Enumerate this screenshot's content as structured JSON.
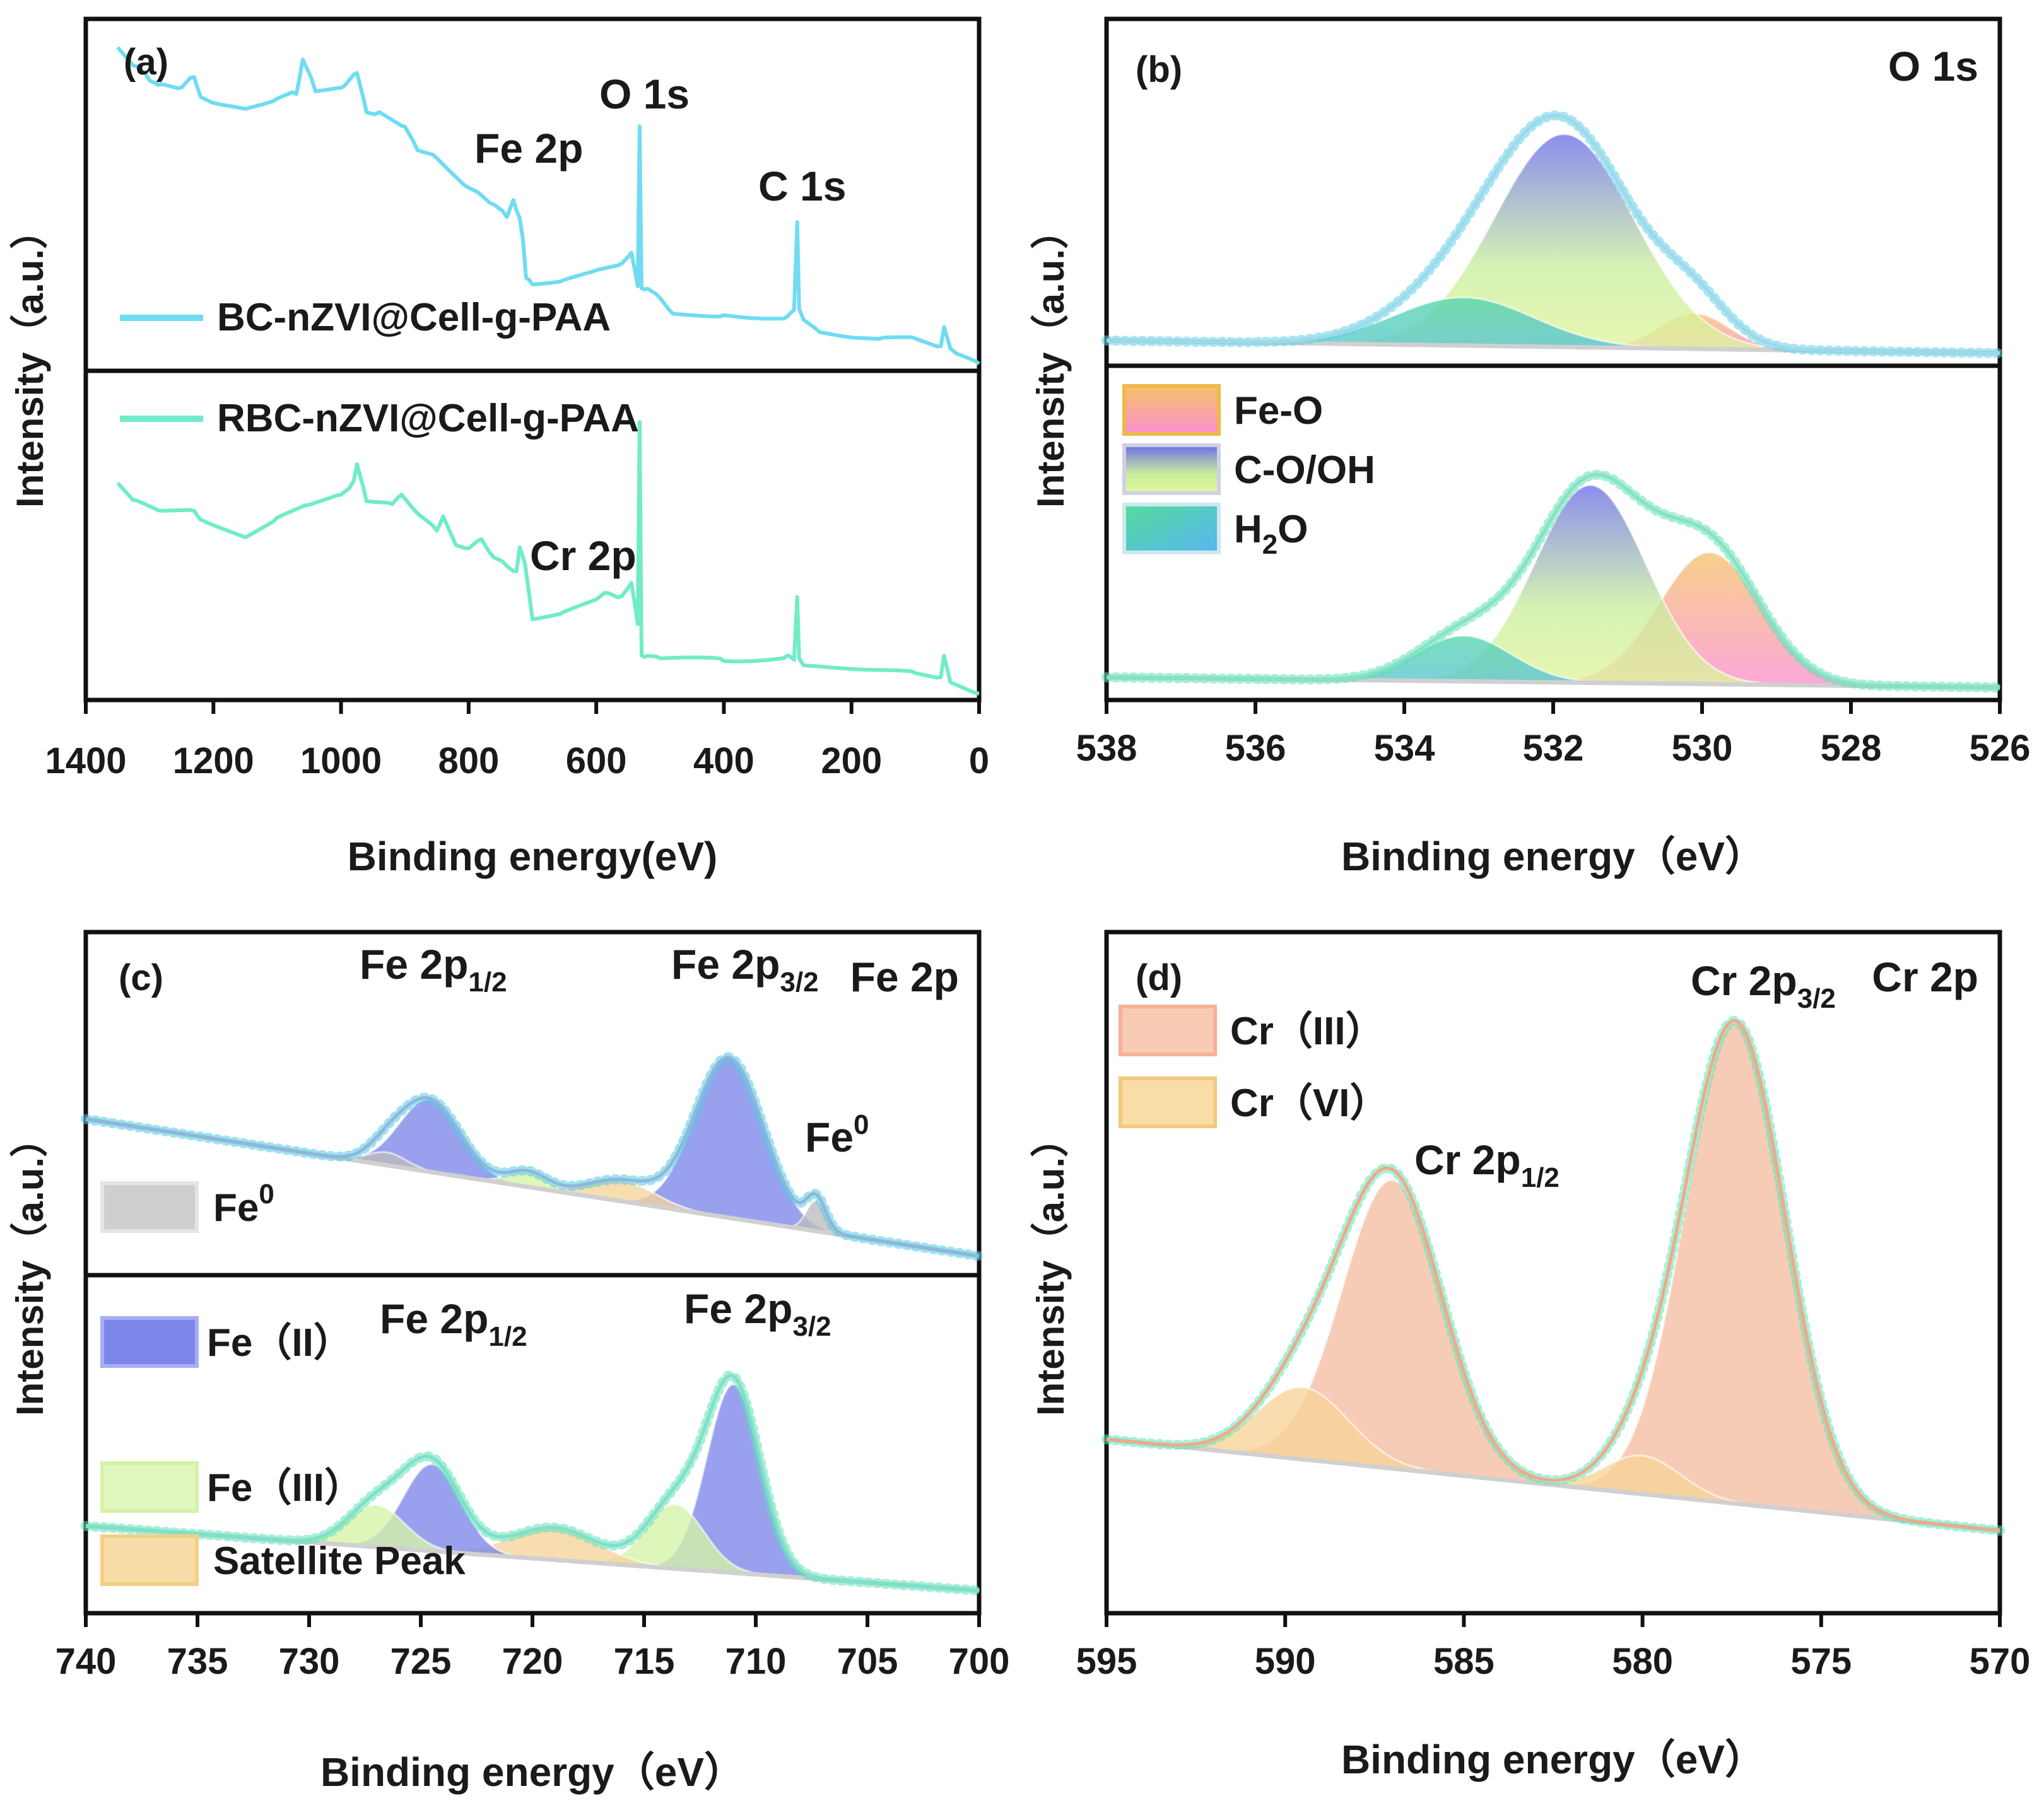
{
  "chart_data": [
    {
      "panel": "(a)",
      "type": "line",
      "xlabel": "Binding energy(eV)",
      "ylabel": "Intensity（a.u.）",
      "xlim": [
        1400,
        0
      ],
      "x_ticks": [
        "1400",
        "1200",
        "1000",
        "800",
        "600",
        "400",
        "200",
        "0"
      ],
      "stacks": [
        {
          "legend": "BC-nZVI@Cell-g-PAA",
          "color": "#6fdcf2",
          "x": [
            1350,
            1320,
            1300,
            1280,
            1250,
            1230,
            1220,
            1200,
            1150,
            1100,
            1070,
            1060,
            1040,
            1000,
            990,
            975,
            960,
            940,
            900,
            880,
            850,
            800,
            780,
            760,
            740,
            730,
            720,
            715,
            710,
            700,
            650,
            600,
            560,
            545,
            535,
            532,
            529,
            520,
            500,
            480,
            400,
            300,
            290,
            285,
            282,
            275,
            250,
            200,
            150,
            100,
            60,
            55,
            45,
            30,
            0
          ],
          "y": [
            0.92,
            0.86,
            0.83,
            0.81,
            0.8,
            0.84,
            0.78,
            0.76,
            0.75,
            0.77,
            0.79,
            0.88,
            0.8,
            0.81,
            0.82,
            0.85,
            0.74,
            0.73,
            0.69,
            0.63,
            0.61,
            0.52,
            0.5,
            0.47,
            0.44,
            0.49,
            0.43,
            0.38,
            0.26,
            0.25,
            0.26,
            0.28,
            0.3,
            0.33,
            0.24,
            0.7,
            0.24,
            0.23,
            0.21,
            0.16,
            0.16,
            0.15,
            0.17,
            0.42,
            0.17,
            0.14,
            0.11,
            0.1,
            0.09,
            0.09,
            0.07,
            0.12,
            0.06,
            0.04,
            0.02
          ],
          "annotations": [
            "Fe 2p",
            "O 1s",
            "C 1s"
          ]
        },
        {
          "legend": "RBC-nZVI@Cell-g-PAA",
          "color": "#70ecc8",
          "x": [
            1350,
            1320,
            1280,
            1230,
            1220,
            1200,
            1150,
            1100,
            1050,
            1000,
            980,
            975,
            960,
            920,
            905,
            880,
            850,
            840,
            820,
            800,
            780,
            760,
            740,
            725,
            720,
            712,
            705,
            700,
            650,
            600,
            580,
            560,
            545,
            535,
            532,
            529,
            520,
            500,
            400,
            300,
            290,
            285,
            282,
            275,
            200,
            100,
            60,
            55,
            45,
            0
          ],
          "y": [
            0.66,
            0.6,
            0.57,
            0.58,
            0.55,
            0.53,
            0.5,
            0.55,
            0.59,
            0.63,
            0.66,
            0.72,
            0.61,
            0.6,
            0.63,
            0.57,
            0.52,
            0.56,
            0.47,
            0.46,
            0.49,
            0.43,
            0.41,
            0.39,
            0.46,
            0.42,
            0.32,
            0.25,
            0.27,
            0.3,
            0.33,
            0.31,
            0.35,
            0.23,
            0.85,
            0.14,
            0.13,
            0.13,
            0.12,
            0.13,
            0.12,
            0.31,
            0.12,
            0.1,
            0.1,
            0.08,
            0.07,
            0.13,
            0.05,
            0.02
          ],
          "annotations": [
            "Cr 2p"
          ]
        }
      ]
    },
    {
      "panel": "(b)",
      "type": "area",
      "title": "O 1s",
      "xlabel": "Binding energy（eV）",
      "ylabel": "Intensity（a.u.）",
      "xlim": [
        538,
        526
      ],
      "x_ticks": [
        "538",
        "536",
        "534",
        "532",
        "530",
        "528",
        "526"
      ],
      "legend": [
        {
          "name": "Fe-O",
          "colors": [
            "#f5c26a",
            "#fb8fcf"
          ]
        },
        {
          "name": "C-O/OH",
          "colors": [
            "#6b6ee8",
            "#d6f39a"
          ]
        },
        {
          "name": "H2O",
          "colors": [
            "#52dc9a",
            "#5ab6f2"
          ]
        }
      ],
      "top_components": [
        {
          "name": "Fe-O",
          "center": 530.1,
          "fwhm": 1.1,
          "height": 0.14
        },
        {
          "name": "C-O/OH",
          "center": 531.85,
          "fwhm": 2.2,
          "height": 0.84
        },
        {
          "name": "H2O",
          "center": 533.2,
          "fwhm": 2.2,
          "height": 0.19
        }
      ],
      "bottom_components": [
        {
          "name": "Fe-O",
          "center": 529.9,
          "fwhm": 1.6,
          "height": 0.52
        },
        {
          "name": "C-O/OH",
          "center": 531.5,
          "fwhm": 1.75,
          "height": 0.78
        },
        {
          "name": "H2O",
          "center": 533.2,
          "fwhm": 1.5,
          "height": 0.18
        }
      ]
    },
    {
      "panel": "(c)",
      "type": "area",
      "title": "Fe 2p",
      "xlabel": "Binding energy（eV）",
      "ylabel": "Intensity（a.u.）",
      "xlim": [
        740,
        700
      ],
      "x_ticks": [
        "740",
        "735",
        "730",
        "725",
        "720",
        "715",
        "710",
        "705",
        "700"
      ],
      "legend": [
        {
          "name": "Fe0",
          "color": "#bdbdbd"
        },
        {
          "name": "Fe（II）",
          "color": "#7c86ea"
        },
        {
          "name": "Fe（III）",
          "color": "#d5f3a6"
        },
        {
          "name": "Satellite Peak",
          "color": "#f5d49a"
        }
      ],
      "peak_labels": [
        "Fe 2p1/2",
        "Fe 2p3/2",
        "Fe0"
      ],
      "top_components": [
        {
          "name": "Fe（II）",
          "center": 711.2,
          "fwhm": 3.6,
          "height": 0.62
        },
        {
          "name": "Fe（II）",
          "center": 724.6,
          "fwhm": 3.2,
          "height": 0.28
        },
        {
          "name": "Satellite Peak",
          "center": 716.0,
          "fwhm": 3.5,
          "height": 0.08
        },
        {
          "name": "Fe（III）",
          "center": 720.2,
          "fwhm": 2.0,
          "height": 0.06
        },
        {
          "name": "Fe0",
          "center": 707.3,
          "fwhm": 1.0,
          "height": 0.12
        },
        {
          "name": "Fe0",
          "center": 726.5,
          "fwhm": 2.0,
          "height": 0.05
        }
      ],
      "bottom_components": [
        {
          "name": "Fe（II）",
          "center": 711.0,
          "fwhm": 2.8,
          "height": 0.76
        },
        {
          "name": "Fe（III）",
          "center": 713.6,
          "fwhm": 3.0,
          "height": 0.26
        },
        {
          "name": "Satellite Peak",
          "center": 719.0,
          "fwhm": 4.5,
          "height": 0.13
        },
        {
          "name": "Fe（II）",
          "center": 724.5,
          "fwhm": 3.0,
          "height": 0.35
        },
        {
          "name": "Fe（III）",
          "center": 727.0,
          "fwhm": 3.0,
          "height": 0.17
        }
      ]
    },
    {
      "panel": "(d)",
      "type": "area",
      "title": "Cr 2p",
      "xlabel": "Binding energy（eV）",
      "ylabel": "Intensity（a.u.）",
      "xlim": [
        595,
        570
      ],
      "x_ticks": [
        "595",
        "590",
        "585",
        "580",
        "575",
        "570"
      ],
      "legend": [
        {
          "name": "Cr（III）",
          "color": "#f5bea2"
        },
        {
          "name": "Cr（VI）",
          "color": "#f7d497"
        }
      ],
      "peak_labels": [
        "Cr 2p1/2",
        "Cr 2p3/2"
      ],
      "components": [
        {
          "name": "Cr（III）",
          "center": 577.4,
          "fwhm": 3.3,
          "height": 1.0
        },
        {
          "name": "Cr（III）",
          "center": 587.0,
          "fwhm": 3.3,
          "height": 0.6
        },
        {
          "name": "Cr（VI）",
          "center": 580.0,
          "fwhm": 2.5,
          "height": 0.08
        },
        {
          "name": "Cr（VI）",
          "center": 589.5,
          "fwhm": 3.0,
          "height": 0.15
        }
      ]
    }
  ]
}
